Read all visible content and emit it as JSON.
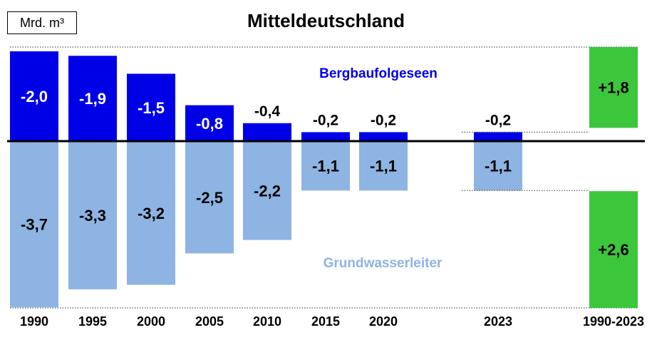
{
  "unit": "Mrd. m³",
  "title": "Mitteldeutschland",
  "colors": {
    "lakes": "#0000e6",
    "aquifer": "#8db4e2",
    "total": "#3cc63c",
    "axis": "#000000",
    "lakes_label": "#0000e6",
    "aquifer_label": "#8db4e2"
  },
  "chart_data": {
    "type": "bar",
    "stacked_diverging": true,
    "title": "Mitteldeutschland",
    "unit": "Mrd. m³",
    "categories": [
      "1990",
      "1995",
      "2000",
      "2005",
      "2010",
      "2015",
      "2020",
      "2023",
      "1990-2023"
    ],
    "series": [
      {
        "name": "Bergbaufolgeseen",
        "values": [
          -2.0,
          -1.9,
          -1.5,
          -0.8,
          -0.4,
          -0.2,
          -0.2,
          -0.2,
          1.8
        ],
        "labels": [
          "-2,0",
          "-1,9",
          "-1,5",
          "-0,8",
          "-0,4",
          "-0,2",
          "-0,2",
          "-0,2",
          "+1,8"
        ]
      },
      {
        "name": "Grundwasserleiter",
        "values": [
          -3.7,
          -3.3,
          -3.2,
          -2.5,
          -2.2,
          -1.1,
          -1.1,
          -1.1,
          2.6
        ],
        "labels": [
          "-3,7",
          "-3,3",
          "-3,2",
          "-2,5",
          "-2,2",
          "-1,1",
          "-1,1",
          "-1,1",
          "+2,6"
        ]
      }
    ],
    "grid": false,
    "legend": "inline labels"
  }
}
